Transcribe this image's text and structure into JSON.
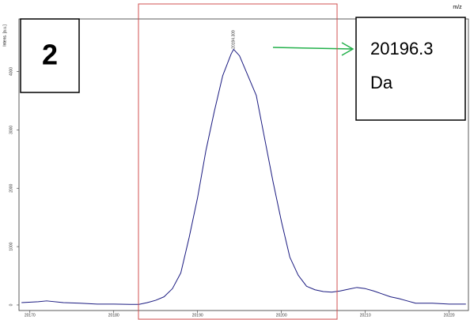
{
  "chart_data": {
    "type": "line",
    "panel_label": "2",
    "annotation_lines": [
      "20196.3",
      "Da"
    ],
    "y_label": "Intens. [a.u.]",
    "x_label": "m/z",
    "peak_label": 20194.309,
    "series": [
      {
        "name": "spectrum",
        "color": "#1a1a80",
        "x": [
          20169,
          20171,
          20172,
          20174,
          20176,
          20178,
          20180,
          20182,
          20183,
          20184,
          20185,
          20186,
          20187,
          20188,
          20189,
          20190,
          20191,
          20192,
          20193,
          20194,
          20194.3,
          20195,
          20196,
          20197,
          20198,
          20199,
          20200,
          20201,
          20202,
          20203,
          20204,
          20205,
          20206,
          20207,
          20208,
          20209,
          20210,
          20211,
          20212,
          20213,
          20214,
          20215,
          20216,
          20218,
          20220,
          20222
        ],
        "values": [
          40,
          55,
          70,
          40,
          30,
          15,
          15,
          10,
          10,
          40,
          80,
          140,
          280,
          550,
          1160,
          1840,
          2650,
          3320,
          3930,
          4300,
          4380,
          4270,
          3930,
          3590,
          2850,
          2110,
          1430,
          820,
          510,
          320,
          260,
          230,
          220,
          240,
          270,
          300,
          280,
          240,
          190,
          140,
          110,
          70,
          30,
          30,
          15,
          15
        ]
      }
    ],
    "xlim": [
      20168.7,
      20222.3
    ],
    "ylim": [
      -95,
      4900
    ],
    "xticks": [
      20170,
      20180,
      20190,
      20200,
      20210,
      20220
    ],
    "yticks": [
      0,
      1000,
      2000,
      3000,
      4000
    ]
  }
}
